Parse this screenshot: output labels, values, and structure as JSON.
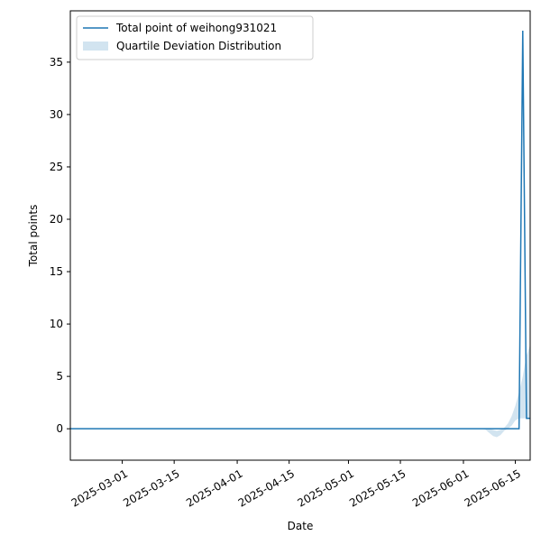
{
  "chart_data": {
    "type": "line",
    "xlabel": "Date",
    "ylabel": "Total points",
    "x": [
      "2025-02-15",
      "2025-06-16",
      "2025-06-17",
      "2025-06-18",
      "2025-06-19"
    ],
    "series": [
      {
        "name": "Total point of weihong931021",
        "color": "#1f77b4",
        "values": [
          0,
          0,
          38,
          1,
          1
        ]
      }
    ],
    "band": {
      "name": "Quartile Deviation Distribution",
      "color": "#1f77b4",
      "x": [
        "2025-06-05",
        "2025-06-06",
        "2025-06-07",
        "2025-06-08",
        "2025-06-09",
        "2025-06-10",
        "2025-06-11",
        "2025-06-12",
        "2025-06-13",
        "2025-06-14",
        "2025-06-15",
        "2025-06-16",
        "2025-06-17",
        "2025-06-18",
        "2025-06-19"
      ],
      "lower": [
        0,
        0,
        -0.1,
        -0.4,
        -0.7,
        -0.8,
        -0.6,
        -0.2,
        0,
        0.3,
        0.8,
        1,
        1,
        1,
        1
      ],
      "upper": [
        0,
        0,
        0,
        0,
        -0.1,
        -0.2,
        -0.1,
        0.1,
        0.5,
        1.2,
        2.2,
        3.5,
        5,
        7,
        8
      ]
    },
    "xlim": [
      "2025-02-15",
      "2025-06-19"
    ],
    "xticks": [
      "2025-03-01",
      "2025-03-15",
      "2025-04-01",
      "2025-04-15",
      "2025-05-01",
      "2025-05-15",
      "2025-06-01",
      "2025-06-15"
    ],
    "ylim": [
      -3,
      39.9
    ],
    "yticks": [
      0,
      5,
      10,
      15,
      20,
      25,
      30,
      35
    ],
    "legend": "upper left"
  }
}
